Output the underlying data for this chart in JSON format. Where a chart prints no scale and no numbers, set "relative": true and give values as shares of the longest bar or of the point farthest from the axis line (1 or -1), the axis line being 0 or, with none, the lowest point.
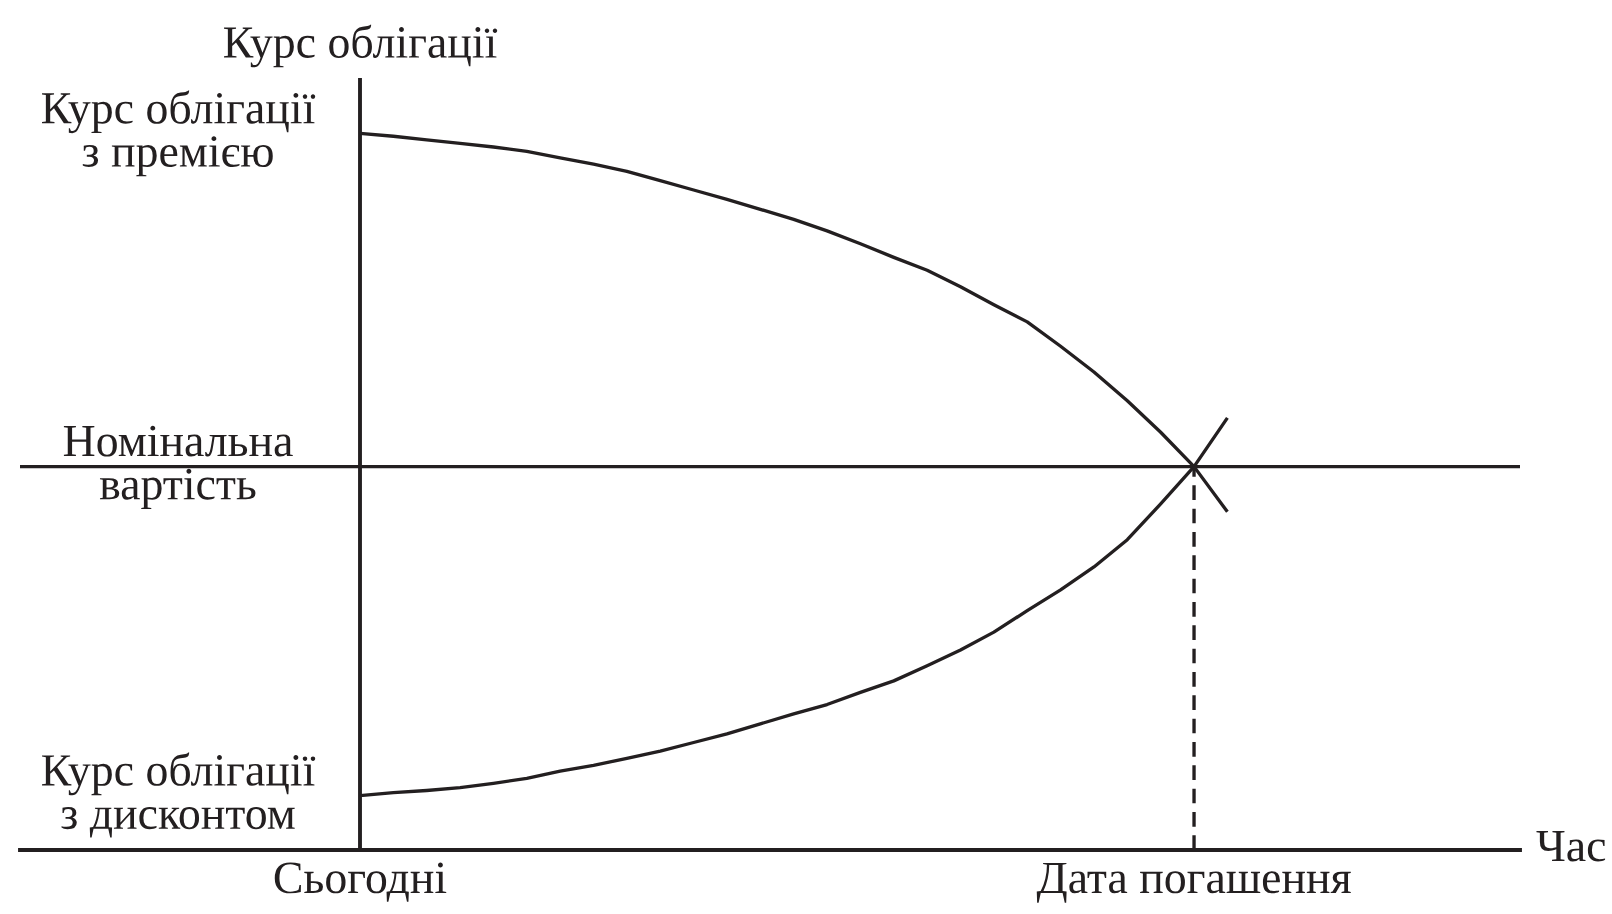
{
  "chart_data": {
    "type": "line",
    "relative": true,
    "xlabel": "Час",
    "ylabel": "Курс облігації",
    "categories": [
      "Сьогодні",
      null,
      null,
      null,
      null,
      null,
      null,
      null,
      null,
      null,
      null,
      null,
      null,
      null,
      null,
      null,
      null,
      null,
      null,
      null,
      null,
      null,
      null,
      null,
      null,
      "Дата погашення",
      null
    ],
    "series": [
      {
        "color": "#231f20",
        "values": [
          1.0,
          0.996,
          0.991,
          0.986,
          0.981,
          0.975,
          0.966,
          0.957,
          0.947,
          0.934,
          0.921,
          0.908,
          0.894,
          0.88,
          0.864,
          0.846,
          0.827,
          0.809,
          0.786,
          0.761,
          0.737,
          0.703,
          0.667,
          0.627,
          0.583,
          0.535,
          0.472
        ]
      },
      {
        "color": "#231f20",
        "values": [
          0.076,
          0.08,
          0.083,
          0.087,
          0.093,
          0.1,
          0.11,
          0.118,
          0.128,
          0.138,
          0.15,
          0.162,
          0.176,
          0.19,
          0.203,
          0.22,
          0.236,
          0.257,
          0.279,
          0.304,
          0.334,
          0.363,
          0.395,
          0.433,
          0.483,
          0.535,
          0.603
        ]
      },
      {
        "color": "#231f20",
        "line_style": "dashed",
        "x": [
          "Дата погашення",
          "Дата погашення"
        ],
        "values": [
          0,
          0.535
        ]
      }
    ],
    "ref_lines": [
      {
        "axis": "y",
        "value": 0.535,
        "label": "Номінальна\nвартість",
        "color": "#231f20"
      }
    ],
    "annotations": [
      {
        "text": "Курс облігації\nз премією",
        "x": "Сьогодні",
        "y": 1.0
      },
      {
        "text": "Курс облігації\nз дисконтом",
        "x": "Сьогодні",
        "y": 0.076
      }
    ]
  }
}
